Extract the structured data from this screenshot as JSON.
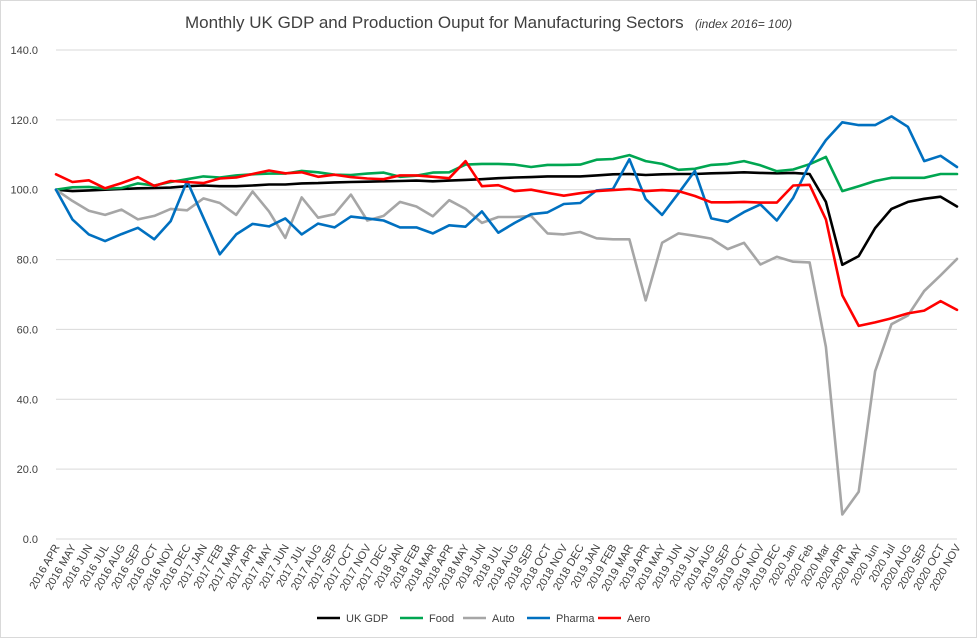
{
  "chart_data": {
    "type": "line",
    "title": "Monthly UK GDP and Production Ouput for Manufacturing Sectors",
    "subtitle": "(index 2016= 100)",
    "xlabel": "",
    "ylabel": "",
    "ylim": [
      0,
      140
    ],
    "ytick_step": 20,
    "yticks": [
      "0.0",
      "20.0",
      "40.0",
      "60.0",
      "80.0",
      "100.0",
      "120.0",
      "140.0"
    ],
    "grid": true,
    "legend_position": "bottom",
    "categories": [
      "2016 APR",
      "2016 MAY",
      "2016 JUN",
      "2016 JUL",
      "2016 AUG",
      "2016 SEP",
      "2016 OCT",
      "2016 NOV",
      "2016 DEC",
      "2017 JAN",
      "2017 FEB",
      "2017 MAR",
      "2017 APR",
      "2017 MAY",
      "2017 JUN",
      "2017 JUL",
      "2017 AUG",
      "2017 SEP",
      "2017 OCT",
      "2017 NOV",
      "2017 DEC",
      "2018 JAN",
      "2018 FEB",
      "2018 MAR",
      "2018 APR",
      "2018 MAY",
      "2018 JUN",
      "2018 JUL",
      "2018 AUG",
      "2018 SEP",
      "2018 OCT",
      "2018 NOV",
      "2018 DEC",
      "2019 JAN",
      "2019 FEB",
      "2019 MAR",
      "2019 APR",
      "2019 MAY",
      "2019 JUN",
      "2019 JUL",
      "2019 AUG",
      "2019 SEP",
      "2019 OCT",
      "2019 NOV",
      "2019 DEC",
      "2020 Jan",
      "2020 Feb",
      "2020 Mar",
      "2020 APR",
      "2020 MAY",
      "2020 Jun",
      "2020 Jul",
      "2020 AUG",
      "2020 SEP",
      "2020 OCT",
      "2020 NOV"
    ],
    "series": [
      {
        "name": "UK GDP",
        "color": "#000000",
        "values": [
          100.0,
          99.6,
          99.8,
          100.0,
          100.2,
          100.4,
          100.5,
          100.6,
          101.0,
          101.2,
          101.0,
          101.0,
          101.2,
          101.5,
          101.5,
          101.8,
          101.9,
          102.1,
          102.2,
          102.3,
          102.4,
          102.5,
          102.6,
          102.4,
          102.6,
          102.8,
          103.0,
          103.3,
          103.5,
          103.6,
          103.8,
          103.8,
          103.8,
          104.1,
          104.4,
          104.5,
          104.2,
          104.4,
          104.5,
          104.5,
          104.7,
          104.8,
          105.0,
          104.8,
          104.7,
          104.8,
          104.5,
          96.5,
          78.5,
          81.0,
          89.0,
          94.5,
          96.5,
          97.4,
          98.0,
          95.2
        ]
      },
      {
        "name": "Food",
        "color": "#00a651",
        "values": [
          100.0,
          100.7,
          100.8,
          100.3,
          100.5,
          101.8,
          101.2,
          102.2,
          103.0,
          103.8,
          103.5,
          104.1,
          104.4,
          104.6,
          104.6,
          105.4,
          105.0,
          104.3,
          104.2,
          104.6,
          104.9,
          103.7,
          104.0,
          104.9,
          105.0,
          107.2,
          107.4,
          107.4,
          107.2,
          106.5,
          107.1,
          107.1,
          107.2,
          108.6,
          108.8,
          109.9,
          108.2,
          107.4,
          105.7,
          106.0,
          107.1,
          107.4,
          108.2,
          107.0,
          105.3,
          105.8,
          107.3,
          109.4,
          99.6,
          101.0,
          102.5,
          103.4,
          103.4,
          103.4,
          104.5,
          104.5
        ]
      },
      {
        "name": "Auto",
        "color": "#a6a6a6",
        "values": [
          100.0,
          96.8,
          94.0,
          92.8,
          94.3,
          91.5,
          92.5,
          94.5,
          94.1,
          97.5,
          96.2,
          92.8,
          99.5,
          93.8,
          86.2,
          97.8,
          92.0,
          93.0,
          98.6,
          91.2,
          92.5,
          96.5,
          95.2,
          92.4,
          97.0,
          94.5,
          90.5,
          92.2,
          92.2,
          92.5,
          87.5,
          87.2,
          87.9,
          86.1,
          85.8,
          85.8,
          68.3,
          84.8,
          87.5,
          86.8,
          86.0,
          83.0,
          84.8,
          78.6,
          80.8,
          79.4,
          79.2,
          55.0,
          7.0,
          13.5,
          48.0,
          61.5,
          64.0,
          71.0,
          75.5,
          80.2
        ]
      },
      {
        "name": "Pharma",
        "color": "#0070c0",
        "values": [
          100.0,
          91.5,
          87.2,
          85.3,
          87.3,
          89.1,
          85.8,
          91.0,
          102.5,
          92.0,
          81.5,
          87.2,
          90.2,
          89.5,
          91.8,
          87.2,
          90.3,
          89.2,
          92.3,
          91.8,
          91.2,
          89.2,
          89.2,
          87.5,
          89.8,
          89.4,
          93.8,
          87.7,
          90.5,
          93.0,
          93.5,
          95.9,
          96.2,
          99.8,
          100.2,
          108.7,
          97.3,
          92.8,
          99.0,
          105.4,
          91.8,
          90.8,
          93.6,
          95.8,
          91.2,
          97.7,
          107.3,
          114.2,
          119.3,
          118.5,
          118.5,
          121.0,
          118.0,
          108.2,
          109.7,
          106.5
        ]
      },
      {
        "name": "Aero",
        "color": "#ff0000",
        "values": [
          104.4,
          102.2,
          102.7,
          100.4,
          101.9,
          103.6,
          101.1,
          102.5,
          102.2,
          101.9,
          103.2,
          103.5,
          104.5,
          105.5,
          104.7,
          105.0,
          103.7,
          104.3,
          103.6,
          103.2,
          103.0,
          104.1,
          104.1,
          103.7,
          103.3,
          108.2,
          101.0,
          101.3,
          99.6,
          100.0,
          99.1,
          98.3,
          99.0,
          99.6,
          99.9,
          100.2,
          99.6,
          99.9,
          99.6,
          98.2,
          96.4,
          96.4,
          96.5,
          96.3,
          96.3,
          101.2,
          101.4,
          91.5,
          69.8,
          61.0,
          62.0,
          63.2,
          64.6,
          65.4,
          68.1,
          65.6
        ]
      }
    ]
  }
}
